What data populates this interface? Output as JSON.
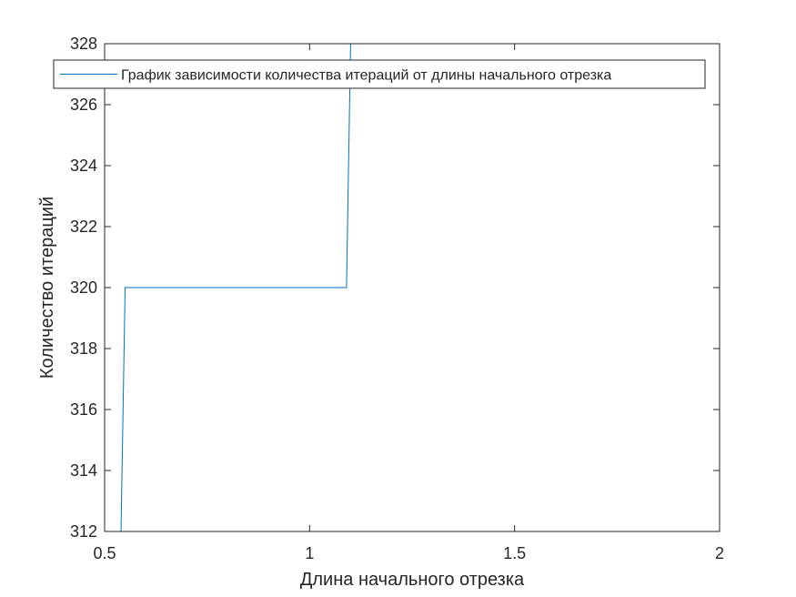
{
  "chart_data": {
    "type": "line",
    "title": "",
    "xlabel": "Длина начального отрезка",
    "ylabel": "Количество итераций",
    "xlim": [
      0.5,
      2
    ],
    "ylim": [
      312,
      328
    ],
    "xticks": [
      "0.5",
      "1",
      "1.5",
      "2"
    ],
    "yticks": [
      "312",
      "314",
      "316",
      "318",
      "320",
      "322",
      "324",
      "326",
      "328"
    ],
    "grid": false,
    "legend_position": "top",
    "series": [
      {
        "name": "График зависимости количества итераций от длины начального отрезка",
        "color": "#0072bd",
        "x": [
          0.5,
          0.54,
          0.55,
          1.09,
          1.1,
          2.0
        ],
        "y": [
          312,
          312,
          320,
          320,
          328,
          328
        ]
      }
    ]
  }
}
